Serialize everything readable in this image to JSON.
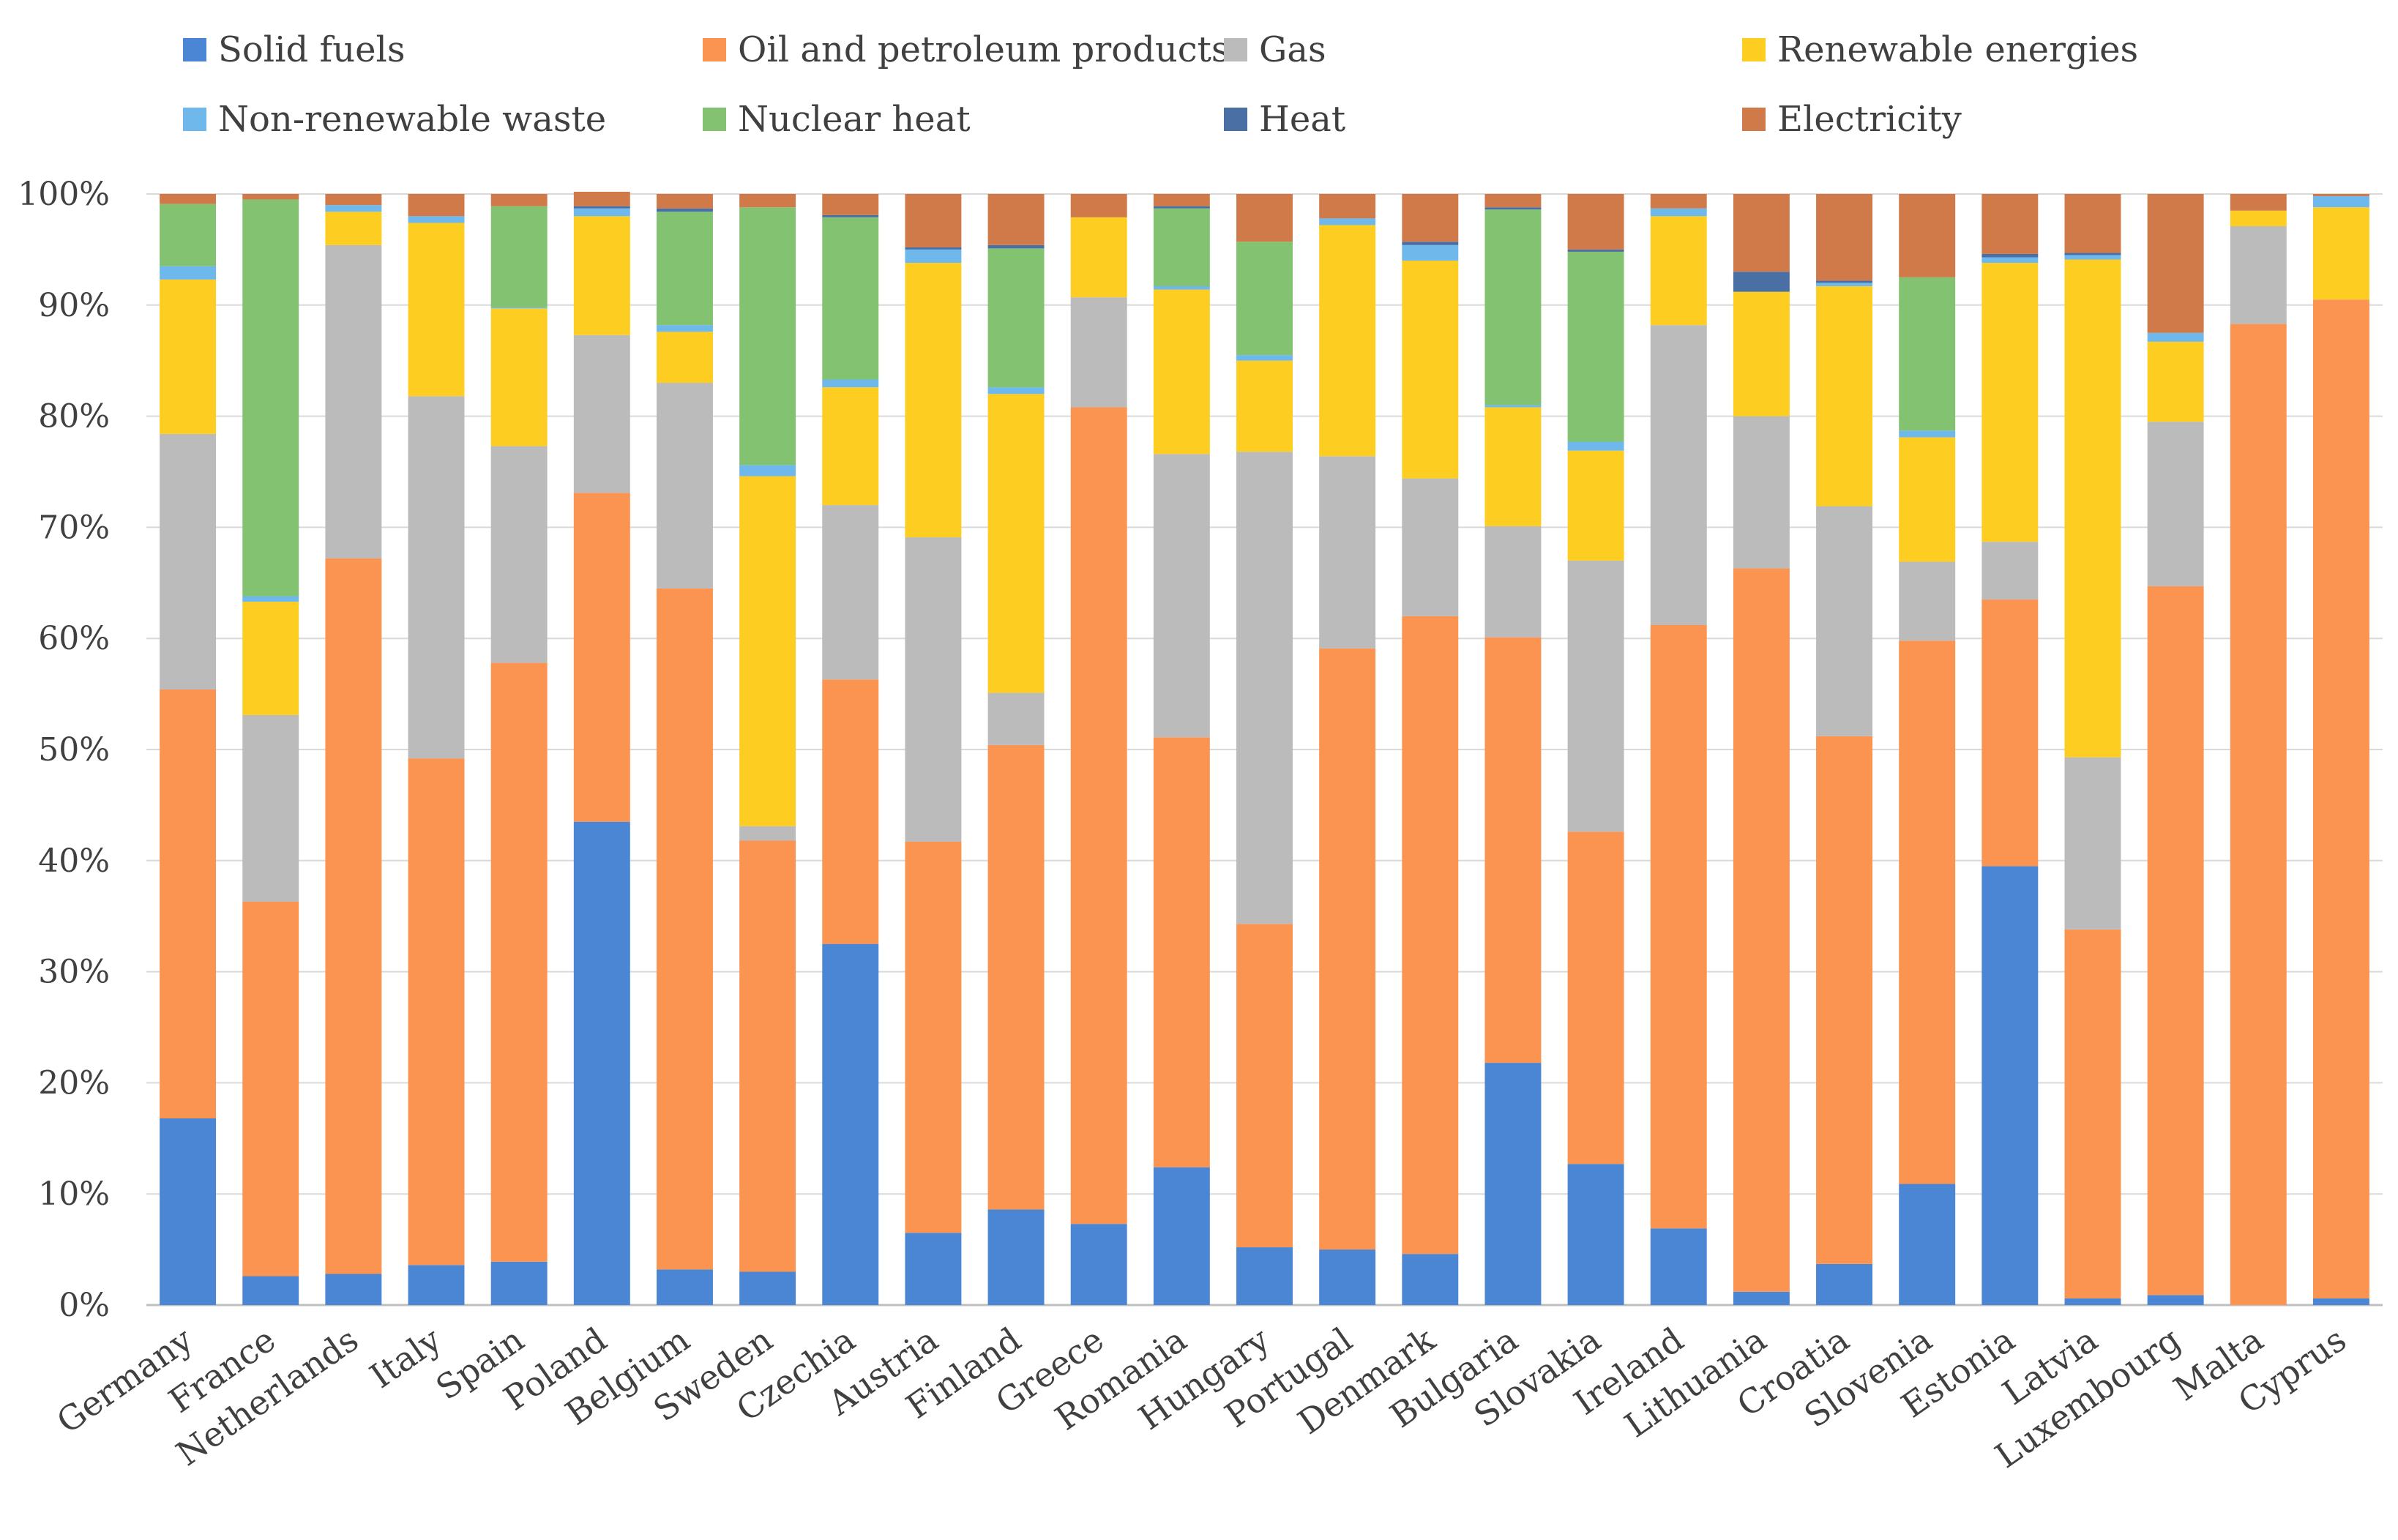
{
  "chart_data": {
    "type": "bar",
    "stacked": true,
    "percent": true,
    "title": "",
    "xlabel": "",
    "ylabel": "",
    "ylim": [
      0,
      100
    ],
    "y_ticks": [
      "0%",
      "10%",
      "20%",
      "30%",
      "40%",
      "50%",
      "60%",
      "70%",
      "80%",
      "90%",
      "100%"
    ],
    "grid": true,
    "legend_position": "top",
    "categories": [
      "Germany",
      "France",
      "Netherlands",
      "Italy",
      "Spain",
      "Poland",
      "Belgium",
      "Sweden",
      "Czechia",
      "Austria",
      "Finland",
      "Greece",
      "Romania",
      "Hungary",
      "Portugal",
      "Denmark",
      "Bulgaria",
      "Slovakia",
      "Ireland",
      "Lithuania",
      "Croatia",
      "Slovenia",
      "Estonia",
      "Latvia",
      "Luxembourg",
      "Malta",
      "Cyprus"
    ],
    "series": [
      {
        "name": "Solid fuels",
        "color": "#4a86d4",
        "values": [
          16.8,
          2.6,
          2.8,
          3.6,
          3.9,
          43.5,
          3.2,
          3.0,
          32.5,
          6.5,
          8.6,
          7.3,
          12.4,
          5.2,
          5.0,
          4.6,
          21.8,
          12.7,
          6.9,
          1.2,
          3.7,
          10.9,
          39.5,
          0.6,
          0.9,
          0.0,
          0.6
        ]
      },
      {
        "name": "Oil and petroleum products",
        "color": "#fb9450",
        "values": [
          38.6,
          33.7,
          64.4,
          45.6,
          53.9,
          29.6,
          61.3,
          38.8,
          23.8,
          35.2,
          41.8,
          73.5,
          38.7,
          29.1,
          54.1,
          57.4,
          38.3,
          29.9,
          54.3,
          65.1,
          47.5,
          48.9,
          24.0,
          33.2,
          63.8,
          88.3,
          89.9
        ]
      },
      {
        "name": "Gas",
        "color": "#bbbbbb",
        "values": [
          23.0,
          16.8,
          28.2,
          32.6,
          19.5,
          14.2,
          18.5,
          1.3,
          15.7,
          27.4,
          4.7,
          9.9,
          25.5,
          42.5,
          17.3,
          12.4,
          10.0,
          24.4,
          27.0,
          13.7,
          20.7,
          7.1,
          5.2,
          15.5,
          14.8,
          8.8,
          0.0
        ]
      },
      {
        "name": "Renewable energies",
        "color": "#fdcd22",
        "values": [
          13.9,
          10.2,
          3.0,
          15.6,
          12.4,
          10.7,
          4.6,
          31.5,
          10.6,
          24.7,
          26.9,
          7.2,
          14.8,
          8.2,
          20.8,
          19.6,
          10.7,
          9.9,
          9.8,
          11.2,
          19.8,
          11.2,
          25.1,
          44.8,
          7.2,
          1.4,
          8.3
        ]
      },
      {
        "name": "Non-renewable waste",
        "color": "#6fb8ec",
        "values": [
          1.2,
          0.5,
          0.6,
          0.6,
          0.1,
          0.7,
          0.6,
          1.0,
          0.7,
          1.2,
          0.6,
          0.0,
          0.3,
          0.5,
          0.6,
          1.4,
          0.2,
          0.8,
          0.7,
          0.0,
          0.3,
          0.6,
          0.5,
          0.4,
          0.8,
          0.0,
          1.0
        ]
      },
      {
        "name": "Nuclear heat",
        "color": "#82c271",
        "values": [
          5.6,
          35.7,
          0.0,
          0.0,
          9.1,
          0.0,
          10.2,
          23.2,
          14.6,
          0.0,
          12.5,
          0.0,
          7.0,
          10.2,
          0.0,
          0.0,
          17.6,
          17.1,
          0.0,
          0.0,
          0.0,
          13.8,
          0.0,
          0.0,
          0.0,
          0.0,
          0.0
        ]
      },
      {
        "name": "Heat",
        "color": "#4a6fa5",
        "values": [
          0.0,
          0.0,
          0.0,
          0.0,
          0.0,
          0.2,
          0.3,
          0.0,
          0.2,
          0.2,
          0.3,
          0.0,
          0.2,
          0.0,
          0.0,
          0.3,
          0.2,
          0.2,
          0.0,
          1.8,
          0.2,
          0.0,
          0.3,
          0.2,
          0.0,
          0.0,
          0.0
        ]
      },
      {
        "name": "Electricity",
        "color": "#cf7a48",
        "values": [
          0.9,
          0.5,
          1.0,
          2.0,
          1.1,
          1.3,
          1.3,
          1.2,
          1.9,
          4.8,
          4.6,
          2.1,
          1.1,
          4.3,
          2.2,
          4.3,
          1.2,
          5.0,
          1.3,
          7.0,
          7.8,
          7.5,
          5.4,
          5.3,
          12.5,
          1.5,
          0.2
        ]
      }
    ]
  }
}
